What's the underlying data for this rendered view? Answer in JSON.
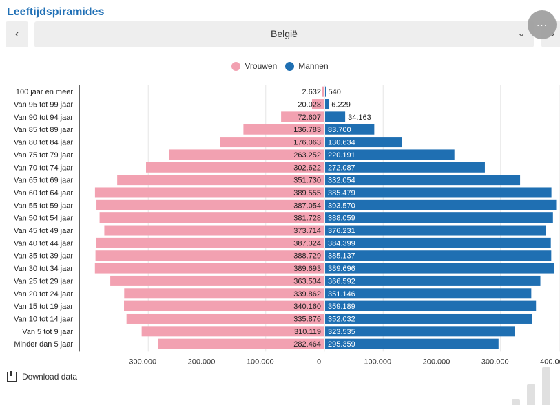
{
  "header": {
    "title": "Leeftijdspiramides",
    "prev_label": "‹",
    "next_label": "›",
    "selected_country": "België",
    "chevron": "⌄",
    "more_label": "···"
  },
  "colors": {
    "women": "#f2a1b1",
    "men": "#1f6fb2"
  },
  "footer": {
    "download_label": "Download data"
  },
  "chart_data": {
    "type": "bar",
    "orientation": "horizontal-pyramid",
    "categories": [
      "100 jaar en meer",
      "Van 95 tot 99 jaar",
      "Van 90 tot 94 jaar",
      "Van 85 tot 89 jaar",
      "Van 80 tot 84 jaar",
      "Van 75 tot 79 jaar",
      "Van 70 tot 74 jaar",
      "Van 65 tot 69 jaar",
      "Van 60 tot 64 jaar",
      "Van 55 tot 59 jaar",
      "Van 50 tot 54 jaar",
      "Van 45 tot 49 jaar",
      "Van 40 tot 44 jaar",
      "Van 35 tot 39 jaar",
      "Van 30 tot 34 jaar",
      "Van 25 tot 29 jaar",
      "Van 20 tot 24 jaar",
      "Van 15 tot 19 jaar",
      "Van 10 tot 14 jaar",
      "Van 5 tot 9 jaar",
      "Minder dan 5 jaar"
    ],
    "series": [
      {
        "name": "Vrouwen",
        "side": "left",
        "values": [
          2632,
          20028,
          72607,
          136783,
          176063,
          263252,
          302622,
          351730,
          389555,
          387054,
          381728,
          373714,
          387324,
          388729,
          389693,
          363534,
          339862,
          340160,
          335876,
          310119,
          282464
        ],
        "labels": [
          "2.632",
          "20.028",
          "72.607",
          "136.783",
          "176.063",
          "263.252",
          "302.622",
          "351.730",
          "389.555",
          "387.054",
          "381.728",
          "373.714",
          "387.324",
          "388.729",
          "389.693",
          "363.534",
          "339.862",
          "340.160",
          "335.876",
          "310.119",
          "282.464"
        ]
      },
      {
        "name": "Mannen",
        "side": "right",
        "values": [
          540,
          6229,
          34163,
          83700,
          130634,
          220191,
          272087,
          332054,
          385479,
          393570,
          388059,
          376231,
          384399,
          385137,
          389696,
          366592,
          351146,
          359189,
          352032,
          323535,
          295359
        ],
        "labels": [
          "540",
          "6.229",
          "34.163",
          "83.700",
          "130.634",
          "220.191",
          "272.087",
          "332.054",
          "385.479",
          "393.570",
          "388.059",
          "376.231",
          "384.399",
          "385.137",
          "389.696",
          "366.592",
          "351.146",
          "359.189",
          "352.032",
          "323.535",
          "295.359"
        ]
      }
    ],
    "x_ticks": [
      -300000,
      -200000,
      -100000,
      0,
      100000,
      200000,
      300000,
      400000
    ],
    "x_tick_labels": [
      "300.000",
      "200.000",
      "100.000",
      "0",
      "100.000",
      "200.000",
      "300.000",
      "400.000"
    ],
    "xlim": [
      -400000,
      400000
    ],
    "legend_position": "top-center",
    "grid": true
  }
}
